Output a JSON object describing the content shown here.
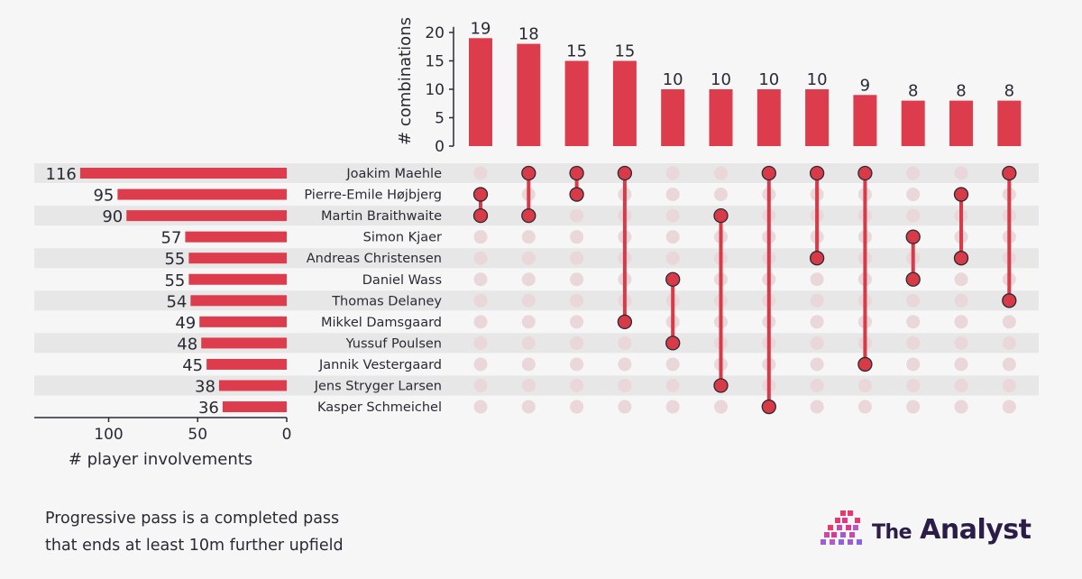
{
  "chart_data": {
    "type": "upset",
    "players": [
      {
        "name": "Joakim Maehle",
        "involvements": 116
      },
      {
        "name": "Pierre-Emile Højbjerg",
        "involvements": 95
      },
      {
        "name": "Martin Braithwaite",
        "involvements": 90
      },
      {
        "name": "Simon Kjaer",
        "involvements": 57
      },
      {
        "name": "Andreas Christensen",
        "involvements": 55
      },
      {
        "name": "Daniel Wass",
        "involvements": 55
      },
      {
        "name": "Thomas Delaney",
        "involvements": 54
      },
      {
        "name": "Mikkel Damsgaard",
        "involvements": 49
      },
      {
        "name": "Yussuf Poulsen",
        "involvements": 48
      },
      {
        "name": "Jannik Vestergaard",
        "involvements": 45
      },
      {
        "name": "Jens Stryger Larsen",
        "involvements": 38
      },
      {
        "name": "Kasper Schmeichel",
        "involvements": 36
      }
    ],
    "combinations": [
      {
        "count": 19,
        "players": [
          "Pierre-Emile Højbjerg",
          "Martin Braithwaite"
        ]
      },
      {
        "count": 18,
        "players": [
          "Joakim Maehle",
          "Martin Braithwaite"
        ]
      },
      {
        "count": 15,
        "players": [
          "Joakim Maehle",
          "Pierre-Emile Højbjerg"
        ]
      },
      {
        "count": 15,
        "players": [
          "Joakim Maehle",
          "Mikkel Damsgaard"
        ]
      },
      {
        "count": 10,
        "players": [
          "Daniel Wass",
          "Yussuf Poulsen"
        ]
      },
      {
        "count": 10,
        "players": [
          "Martin Braithwaite",
          "Jens Stryger Larsen"
        ]
      },
      {
        "count": 10,
        "players": [
          "Joakim Maehle",
          "Kasper Schmeichel"
        ]
      },
      {
        "count": 10,
        "players": [
          "Joakim Maehle",
          "Andreas Christensen"
        ]
      },
      {
        "count": 9,
        "players": [
          "Joakim Maehle",
          "Jannik Vestergaard"
        ]
      },
      {
        "count": 8,
        "players": [
          "Simon Kjaer",
          "Daniel Wass"
        ]
      },
      {
        "count": 8,
        "players": [
          "Pierre-Emile Højbjerg",
          "Andreas Christensen"
        ]
      },
      {
        "count": 8,
        "players": [
          "Joakim Maehle",
          "Thomas Delaney"
        ]
      }
    ],
    "top_axis": {
      "label": "# combinations",
      "ticks": [
        0,
        5,
        10,
        15,
        20
      ],
      "ylim": [
        0,
        21
      ]
    },
    "left_axis": {
      "label": "# player involvements",
      "ticks": [
        100,
        50,
        0
      ],
      "xlim": [
        140,
        0
      ]
    },
    "grid": false
  },
  "colors": {
    "bar": "#dc3c4b",
    "dot_active": "#d83a48",
    "dot_inactive": "#e9d7d9",
    "band": "#e7e7e7",
    "background": "#f6f6f6",
    "text": "#2a2a35"
  },
  "footnote": {
    "line1": "Progressive pass is a completed pass",
    "line2": "that ends at least 10m further upfield"
  },
  "brand": {
    "the": "The",
    "analyst": "Analyst",
    "icon": "stepped-squares-logo-icon"
  }
}
